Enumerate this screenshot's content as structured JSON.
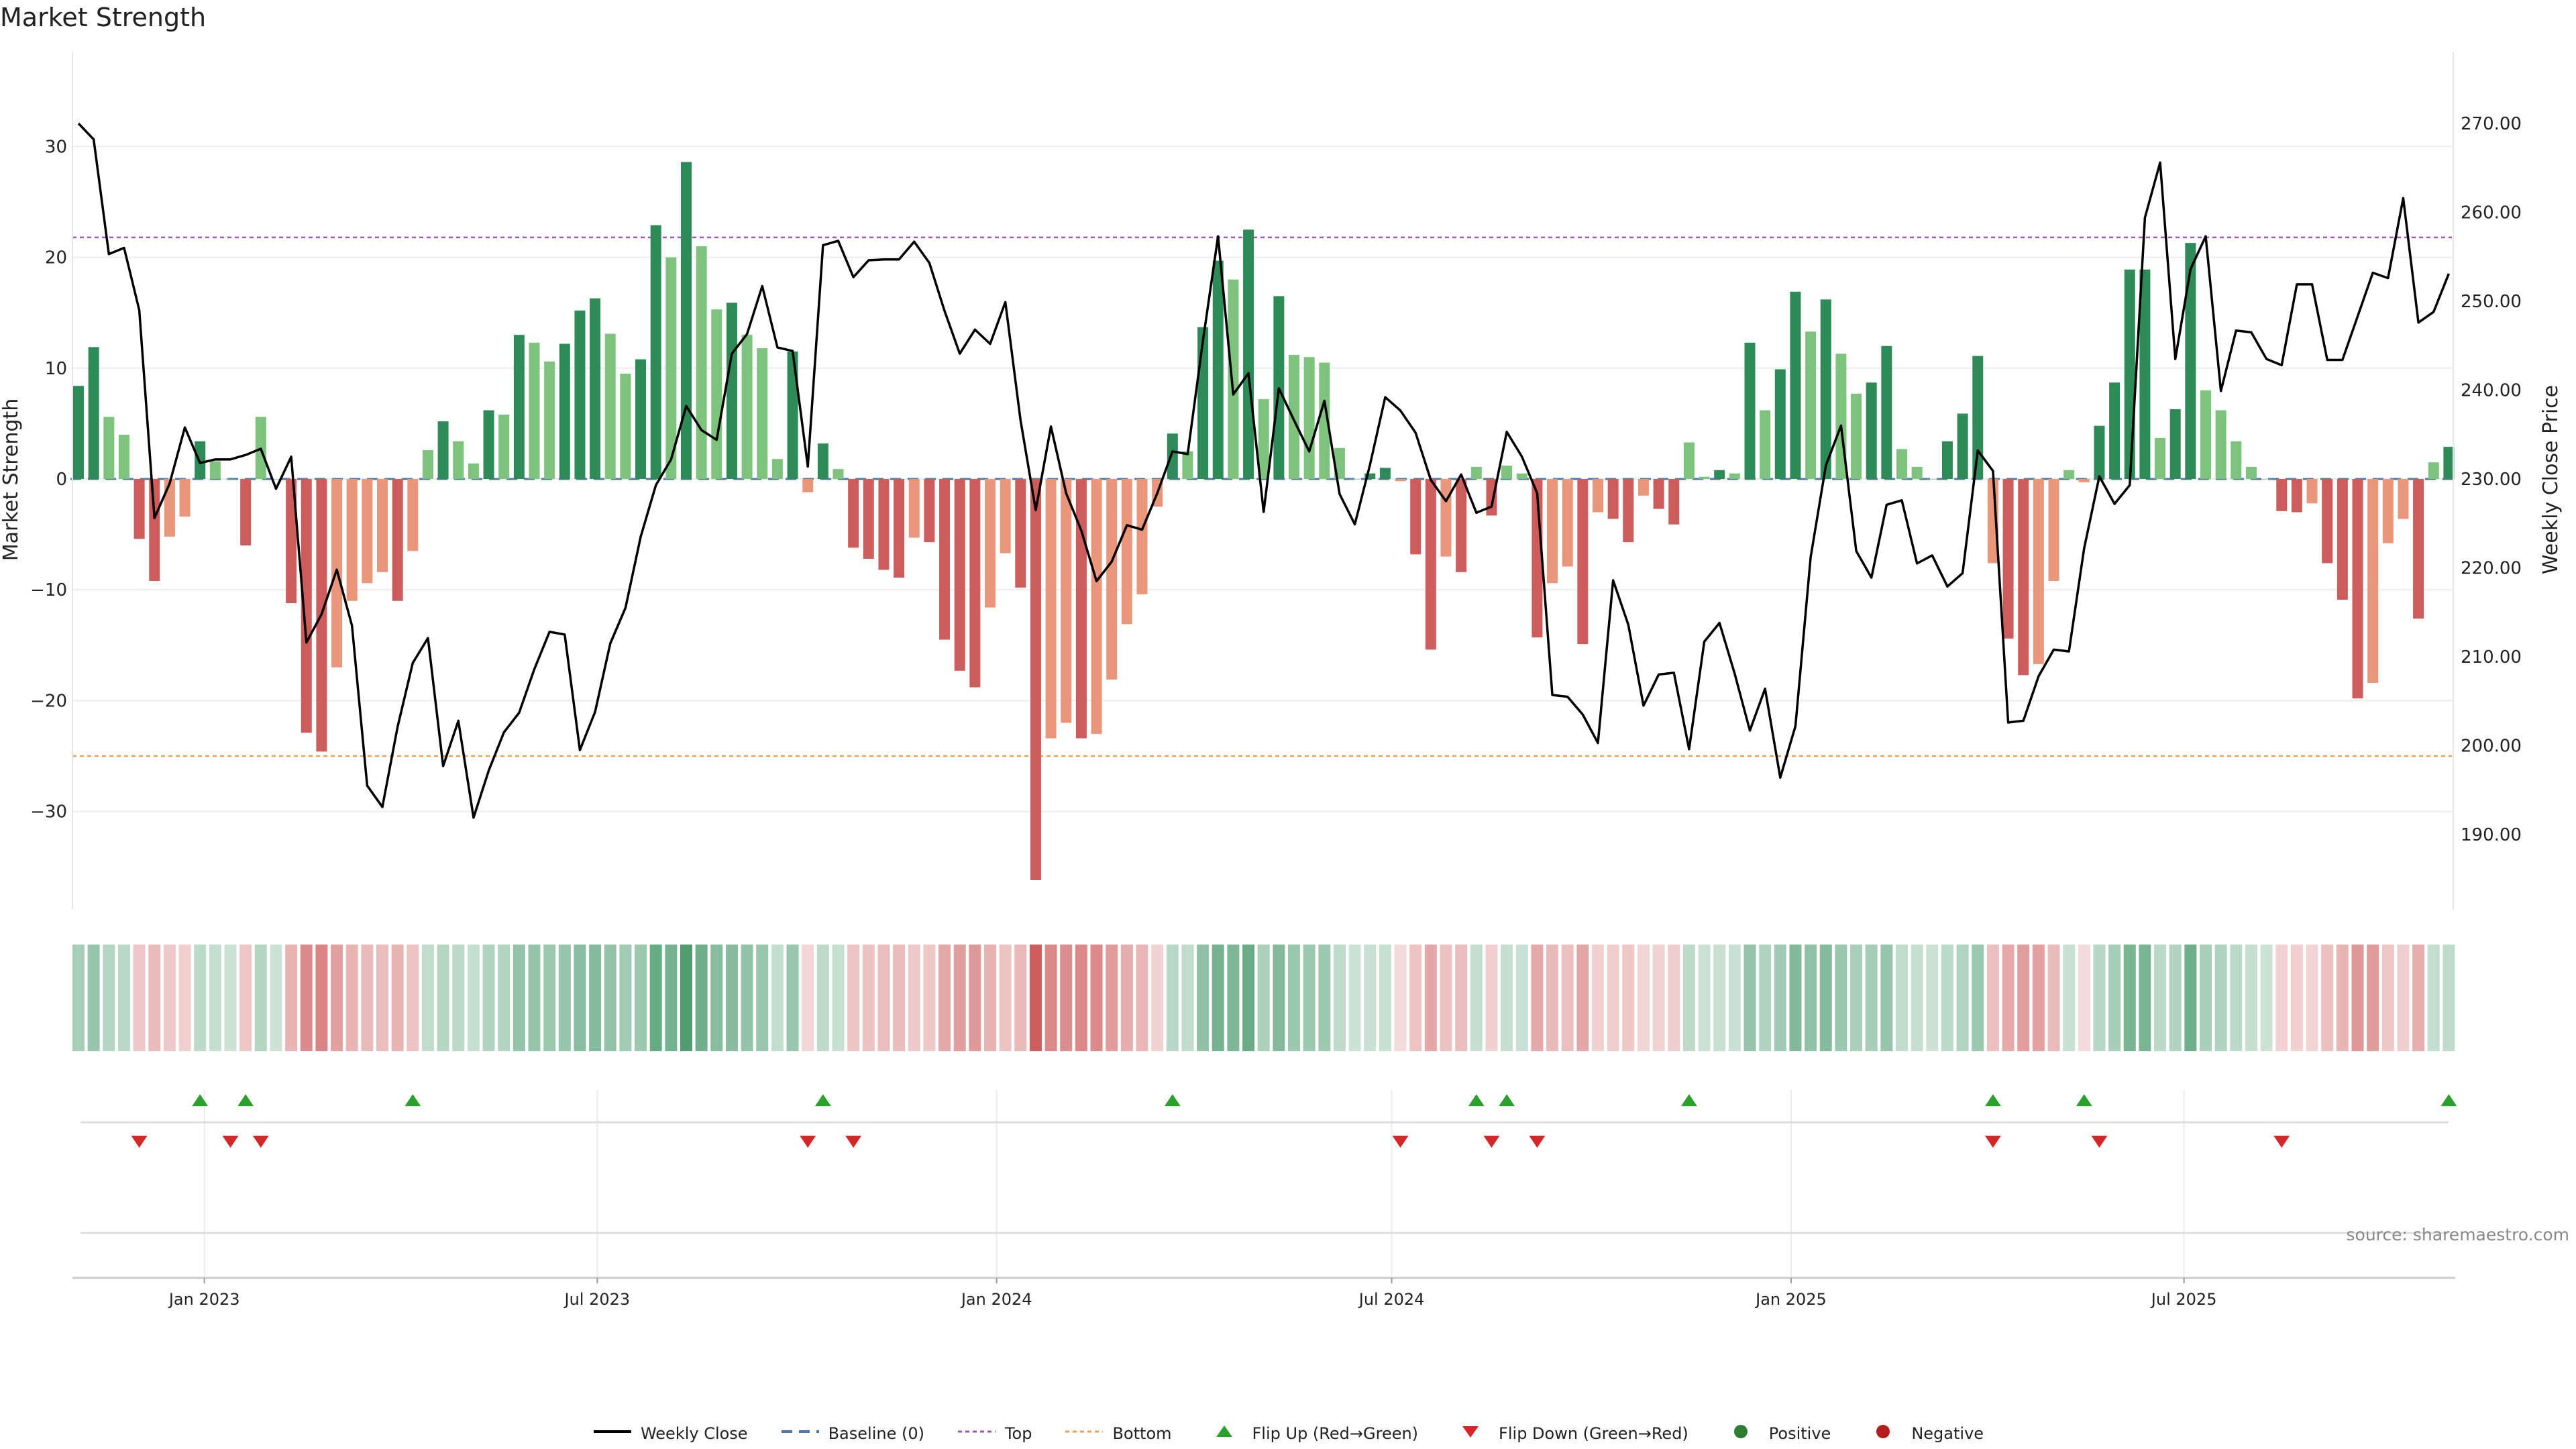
{
  "chart_data": {
    "type": "bar",
    "title": "Market Strength",
    "ylabel_left": "Market Strength",
    "ylabel_right": "Weekly Close Price",
    "source": "source: sharemaestro.com",
    "left_axis": {
      "ylim": [
        -38.5,
        38.5
      ],
      "ticks": [
        30,
        20,
        10,
        0,
        -10,
        -20,
        -30
      ],
      "tick_labels": [
        "30",
        "20",
        "10",
        "0",
        "−10",
        "−20",
        "−30"
      ]
    },
    "right_axis": {
      "ylim": [
        182,
        278
      ],
      "ticks": [
        270,
        260,
        250,
        240,
        230,
        220,
        210,
        200,
        190
      ],
      "tick_labels": [
        "270.00",
        "260.00",
        "250.00",
        "240.00",
        "230.00",
        "220.00",
        "210.00",
        "200.00",
        "190.00"
      ]
    },
    "x_axis": {
      "start_date": "2022-11-04",
      "ticks": [
        {
          "label": "Jan 2023",
          "date": "2023-01-01"
        },
        {
          "label": "Jul 2023",
          "date": "2023-07-01"
        },
        {
          "label": "Jan 2024",
          "date": "2024-01-01"
        },
        {
          "label": "Jul 2024",
          "date": "2024-07-01"
        },
        {
          "label": "Jan 2025",
          "date": "2025-01-01"
        },
        {
          "label": "Jul 2025",
          "date": "2025-07-01"
        }
      ]
    },
    "reference_lines": {
      "top": 21.8,
      "bottom": -25.0,
      "baseline": 0
    },
    "grid": true,
    "legend_position": "bottom-center",
    "colors": {
      "strong_green": "#2e8b57",
      "light_green": "#7dc27d",
      "strong_red": "#cd5c5c",
      "light_red": "#e9967a",
      "price_line": "#000000",
      "top_line": "#9b59b6",
      "bottom_line": "#f0a050",
      "baseline": "#4a7ab0",
      "flip_up": "#2ca02c",
      "flip_down": "#d62728"
    },
    "strength": [
      8.4,
      11.9,
      5.6,
      4,
      -5.4,
      -9.2,
      -5.2,
      -3.4,
      3.4,
      1.6,
      0,
      -6,
      5.6,
      0,
      -11.2,
      -22.9,
      -24.6,
      -17,
      -11,
      -9.4,
      -8.4,
      -11,
      -6.5,
      2.6,
      5.2,
      3.4,
      1.4,
      6.2,
      5.8,
      13,
      12.3,
      10.6,
      12.2,
      15.2,
      16.3,
      13.1,
      9.5,
      10.8,
      22.9,
      20,
      28.6,
      21,
      15.3,
      15.9,
      13,
      11.8,
      1.8,
      11.5,
      -1.2,
      3.2,
      0.9,
      -6.2,
      -7.2,
      -8.2,
      -8.9,
      -5.3,
      -5.7,
      -14.5,
      -17.3,
      -18.8,
      -11.6,
      -6.7,
      -9.8,
      -36.2,
      -23.4,
      -22,
      -23.4,
      -23,
      -18.1,
      -13.1,
      -10.4,
      -2.5,
      4.1,
      2.5,
      13.7,
      19.7,
      18,
      22.5,
      7.2,
      16.5,
      11.2,
      11,
      10.5,
      2.8,
      0,
      0.5,
      1,
      -0.2,
      -6.8,
      -15.4,
      -7,
      -8.4,
      1.1,
      -3.3,
      1.2,
      0.5,
      -14.3,
      -9.4,
      -7.9,
      -14.9,
      -3,
      -3.6,
      -5.7,
      -1.5,
      -2.7,
      -4.1,
      3.3,
      0.2,
      0.8,
      0.5,
      12.3,
      6.2,
      9.9,
      16.9,
      13.3,
      16.2,
      11.3,
      7.7,
      8.7,
      12,
      2.7,
      1.1,
      0,
      3.4,
      5.9,
      11.1,
      -7.6,
      -14.4,
      -17.7,
      -16.7,
      -9.2,
      0.8,
      -0.3,
      4.8,
      8.7,
      18.9,
      18.9,
      3.7,
      6.3,
      21.3,
      8,
      6.2,
      3.4,
      1.1,
      0,
      -2.9,
      -3,
      -2.2,
      -7.6,
      -10.9,
      -19.8,
      -18.4,
      -5.8,
      -3.6,
      -12.6,
      1.5,
      2.9
    ],
    "weekly_close": [
      270,
      268.2,
      255.3,
      256,
      249,
      225.6,
      229.5,
      235.8,
      231.8,
      232.2,
      232.2,
      232.7,
      233.4,
      228.9,
      232.5,
      211.6,
      214.8,
      219.8,
      213.5,
      195.5,
      193.1,
      202.1,
      209.3,
      212.1,
      197.7,
      202.8,
      191.9,
      197.2,
      201.5,
      203.7,
      208.6,
      212.8,
      212.5,
      199.5,
      203.8,
      211.5,
      215.5,
      223.5,
      229.3,
      232.2,
      238.2,
      235.5,
      234.4,
      244.1,
      246.3,
      251.7,
      244.8,
      244.4,
      231.4,
      256.3,
      256.8,
      252.7,
      254.6,
      254.7,
      254.7,
      256.7,
      254.3,
      248.9,
      244.1,
      246.8,
      245.2,
      249.9,
      236.6,
      226.5,
      235.9,
      228.4,
      224.2,
      218.5,
      220.7,
      224.8,
      224.3,
      228.4,
      233.1,
      232.8,
      245.5,
      257.3,
      239.5,
      241.9,
      226.3,
      240.2,
      236.6,
      233.1,
      238.8,
      228.3,
      224.9,
      231.6,
      239.2,
      237.7,
      235.2,
      229.9,
      227.5,
      230.5,
      226.2,
      226.9,
      235.3,
      232.5,
      228.4,
      205.7,
      205.5,
      203.5,
      200.3,
      218.6,
      213.6,
      204.5,
      208,
      208.2,
      199.6,
      211.7,
      213.8,
      208.1,
      201.7,
      206.4,
      196.4,
      202.2,
      221.2,
      231.5,
      236,
      221.9,
      218.9,
      227.1,
      227.6,
      220.5,
      221.4,
      217.9,
      219.4,
      233.2,
      230.9,
      202.6,
      202.8,
      207.8,
      210.8,
      210.6,
      222.2,
      230.3,
      227.2,
      229.3,
      259.4,
      265.6,
      243.5,
      253.6,
      257.3,
      239.9,
      246.7,
      246.5,
      243.5,
      242.8,
      251.9,
      251.9,
      243.4,
      243.4,
      248.3,
      253.2,
      252.6,
      261.6,
      247.6,
      248.8,
      253.1
    ],
    "flip_up_weeks": [
      8,
      11,
      22,
      49,
      72,
      92,
      94,
      106,
      126,
      132,
      156
    ],
    "flip_down_weeks": [
      4,
      10,
      12,
      48,
      51,
      87,
      93,
      96,
      126,
      133,
      145
    ]
  },
  "legend": [
    {
      "key": "weekly_close",
      "label": "Weekly Close"
    },
    {
      "key": "baseline",
      "label": "Baseline (0)"
    },
    {
      "key": "top",
      "label": "Top"
    },
    {
      "key": "bottom",
      "label": "Bottom"
    },
    {
      "key": "flip_up",
      "label": "Flip Up (Red→Green)"
    },
    {
      "key": "flip_down",
      "label": "Flip Down (Green→Red)"
    },
    {
      "key": "positive",
      "label": "Positive"
    },
    {
      "key": "negative",
      "label": "Negative"
    }
  ]
}
